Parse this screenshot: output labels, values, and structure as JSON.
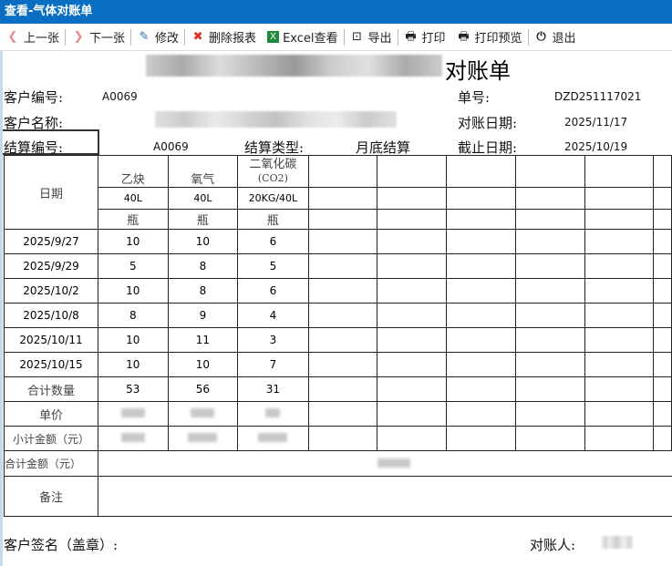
{
  "window": {
    "title": "查看-气体对账单"
  },
  "toolbar": {
    "prev": "上一张",
    "next": "下一张",
    "edit": "修改",
    "delete": "删除报表",
    "excel": "Excel查看",
    "export": "导出",
    "print": "打印",
    "preview": "打印预览",
    "exit": "退出"
  },
  "report": {
    "title": "对账单",
    "customer_no_label": "客户编号:",
    "customer_no": "A0069",
    "customer_name_label": "客户名称:",
    "order_no_label": "单号:",
    "order_no": "DZD251117021",
    "recon_date_label": "对账日期:",
    "recon_date": "2025/11/17",
    "settle_no_label": "结算编号:",
    "settle_no": "A0069",
    "settle_type_label": "结算类型:",
    "settle_type": "月底结算",
    "cutoff_label": "截止日期:",
    "cutoff": "2025/10/19",
    "date_header": "日期",
    "products": [
      {
        "name": "乙炔",
        "spec": "40L",
        "unit": "瓶"
      },
      {
        "name": "氧气",
        "spec": "40L",
        "unit": "瓶"
      },
      {
        "name": "二氧化碳",
        "name2": "(CO2)",
        "spec": "20KG/40L",
        "unit": "瓶"
      }
    ],
    "rows": [
      {
        "date": "2025/9/27",
        "q": [
          "10",
          "10",
          "6"
        ]
      },
      {
        "date": "2025/9/29",
        "q": [
          "5",
          "8",
          "5"
        ]
      },
      {
        "date": "2025/10/2",
        "q": [
          "10",
          "8",
          "6"
        ]
      },
      {
        "date": "2025/10/8",
        "q": [
          "8",
          "9",
          "4"
        ]
      },
      {
        "date": "2025/10/11",
        "q": [
          "10",
          "11",
          "3"
        ]
      },
      {
        "date": "2025/10/15",
        "q": [
          "10",
          "10",
          "7"
        ]
      }
    ],
    "total_qty_label": "合计数量",
    "total_qty": [
      "53",
      "56",
      "31"
    ],
    "unit_price_label": "单价",
    "subtotal_label": "小计金额（元）",
    "total_amount_label": "合计金额（元）",
    "remark_label": "备注",
    "customer_sign_label": "客户签名（盖章）:",
    "reconciler_label": "对账人:"
  }
}
